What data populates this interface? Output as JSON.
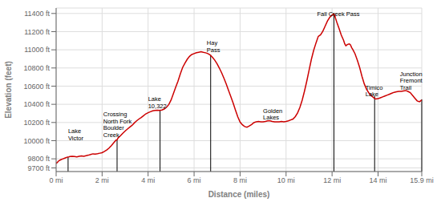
{
  "chart_data": {
    "type": "line",
    "xlabel": "Distance (miles)",
    "ylabel": "Elevation (feet)",
    "xlim": [
      0,
      15.9
    ],
    "ylim": [
      9660,
      11460
    ],
    "yticks": [
      {
        "value": 9700,
        "label": "9700 ft"
      },
      {
        "value": 9800,
        "label": "9800 ft"
      },
      {
        "value": 10000,
        "label": "10000 ft"
      },
      {
        "value": 10200,
        "label": "10200 ft"
      },
      {
        "value": 10400,
        "label": "10400 ft"
      },
      {
        "value": 10600,
        "label": "10600 ft"
      },
      {
        "value": 10800,
        "label": "10800 ft"
      },
      {
        "value": 11000,
        "label": "11000 ft"
      },
      {
        "value": 11200,
        "label": "11200 ft"
      },
      {
        "value": 11400,
        "label": "11400 ft"
      }
    ],
    "xticks": [
      {
        "value": 0,
        "label": "0 mi"
      },
      {
        "value": 2,
        "label": "2 mi"
      },
      {
        "value": 4,
        "label": "4 mi"
      },
      {
        "value": 6,
        "label": "6 mi"
      },
      {
        "value": 8,
        "label": "8 mi"
      },
      {
        "value": 10,
        "label": "10 mi"
      },
      {
        "value": 12,
        "label": "12 mi"
      },
      {
        "value": 14,
        "label": "14 mi"
      },
      {
        "value": 15.9,
        "label": "15.9 mi"
      }
    ],
    "color": "#cc0000",
    "grid": true,
    "annotations": [
      {
        "text": "Lake\nVictor",
        "x": 0.52,
        "y": 9990
      },
      {
        "text": "Crossing\nNorth Fork\nBoulder\nCreek",
        "x": 2.05,
        "y": 10025
      },
      {
        "text": "Lake\n10,322",
        "x": 4.0,
        "y": 10340
      },
      {
        "text": "Hay\nPass",
        "x": 6.55,
        "y": 10960
      },
      {
        "text": "Fall Creek Pass",
        "x": 11.35,
        "y": 11355
      },
      {
        "text": "Golden\nLakes",
        "x": 9.0,
        "y": 10215
      },
      {
        "text": "Timico\nLake",
        "x": 13.45,
        "y": 10470
      },
      {
        "text": "Junction\nFremont\nTrail",
        "x": 14.95,
        "y": 10545
      }
    ],
    "vlines": [
      {
        "x": 0.52,
        "y_top": 9820
      },
      {
        "x": 2.65,
        "y_top": 10010
      },
      {
        "x": 4.52,
        "y_top": 10335
      },
      {
        "x": 6.72,
        "y_top": 10945
      },
      {
        "x": 12.08,
        "y_top": 11395
      },
      {
        "x": 13.85,
        "y_top": 10490
      },
      {
        "x": 15.9,
        "y_top": 10455
      }
    ],
    "x": [
      0.0,
      0.05,
      0.1,
      0.2,
      0.3,
      0.4,
      0.5,
      0.55,
      0.6,
      0.7,
      0.8,
      0.9,
      1.0,
      1.1,
      1.2,
      1.3,
      1.4,
      1.5,
      1.6,
      1.7,
      1.8,
      1.9,
      2.0,
      2.1,
      2.2,
      2.3,
      2.4,
      2.5,
      2.6,
      2.65,
      2.7,
      2.8,
      2.9,
      3.0,
      3.1,
      3.2,
      3.3,
      3.4,
      3.5,
      3.6,
      3.7,
      3.8,
      3.9,
      4.0,
      4.1,
      4.2,
      4.3,
      4.4,
      4.5,
      4.6,
      4.7,
      4.8,
      4.9,
      5.0,
      5.1,
      5.2,
      5.3,
      5.4,
      5.5,
      5.6,
      5.7,
      5.8,
      5.9,
      6.0,
      6.1,
      6.2,
      6.3,
      6.4,
      6.5,
      6.6,
      6.7,
      6.8,
      6.9,
      7.0,
      7.1,
      7.2,
      7.3,
      7.4,
      7.5,
      7.6,
      7.7,
      7.8,
      7.9,
      8.0,
      8.1,
      8.2,
      8.3,
      8.35,
      8.4,
      8.5,
      8.6,
      8.7,
      8.8,
      8.9,
      9.0,
      9.1,
      9.2,
      9.3,
      9.4,
      9.5,
      9.6,
      9.7,
      9.8,
      9.9,
      10.0,
      10.1,
      10.2,
      10.3,
      10.4,
      10.5,
      10.6,
      10.7,
      10.8,
      10.9,
      11.0,
      11.1,
      11.2,
      11.3,
      11.4,
      11.5,
      11.6,
      11.7,
      11.8,
      11.9,
      12.0,
      12.05,
      12.08,
      12.12,
      12.15,
      12.2,
      12.3,
      12.4,
      12.5,
      12.55,
      12.6,
      12.65,
      12.7,
      12.75,
      12.8,
      12.85,
      12.9,
      13.0,
      13.1,
      13.2,
      13.3,
      13.4,
      13.5,
      13.6,
      13.7,
      13.75,
      13.8,
      13.85,
      13.9,
      14.0,
      14.1,
      14.2,
      14.3,
      14.4,
      14.5,
      14.6,
      14.7,
      14.8,
      14.9,
      15.0,
      15.1,
      15.2,
      15.3,
      15.4,
      15.5,
      15.6,
      15.7,
      15.8,
      15.85,
      15.9
    ],
    "values": [
      9750,
      9760,
      9775,
      9790,
      9800,
      9810,
      9820,
      9822,
      9825,
      9828,
      9825,
      9822,
      9828,
      9832,
      9828,
      9835,
      9840,
      9848,
      9855,
      9852,
      9856,
      9862,
      9868,
      9882,
      9898,
      9918,
      9945,
      9975,
      10005,
      10010,
      10032,
      10055,
      10082,
      10105,
      10128,
      10148,
      10168,
      10195,
      10218,
      10238,
      10255,
      10275,
      10295,
      10308,
      10318,
      10328,
      10333,
      10336,
      10332,
      10338,
      10348,
      10368,
      10398,
      10448,
      10518,
      10588,
      10655,
      10735,
      10805,
      10852,
      10895,
      10928,
      10948,
      10958,
      10968,
      10973,
      10978,
      10972,
      10967,
      10958,
      10942,
      10918,
      10885,
      10845,
      10798,
      10745,
      10685,
      10622,
      10552,
      10482,
      10412,
      10335,
      10262,
      10205,
      10175,
      10155,
      10148,
      10155,
      10162,
      10178,
      10198,
      10208,
      10212,
      10208,
      10208,
      10212,
      10218,
      10218,
      10212,
      10208,
      10208,
      10208,
      10212,
      10208,
      10212,
      10218,
      10228,
      10238,
      10265,
      10305,
      10365,
      10445,
      10545,
      10655,
      10775,
      10895,
      10995,
      11075,
      11148,
      11165,
      11205,
      11262,
      11318,
      11358,
      11382,
      11392,
      11395,
      11375,
      11348,
      11308,
      11238,
      11162,
      11105,
      11065,
      11045,
      11055,
      11062,
      11065,
      11055,
      11025,
      11005,
      10955,
      10885,
      10805,
      10708,
      10625,
      10565,
      10525,
      10495,
      10485,
      10475,
      10465,
      10458,
      10462,
      10472,
      10482,
      10492,
      10502,
      10512,
      10522,
      10532,
      10537,
      10542,
      10542,
      10547,
      10552,
      10542,
      10528,
      10498,
      10468,
      10438,
      10428,
      10438,
      10448
    ]
  }
}
